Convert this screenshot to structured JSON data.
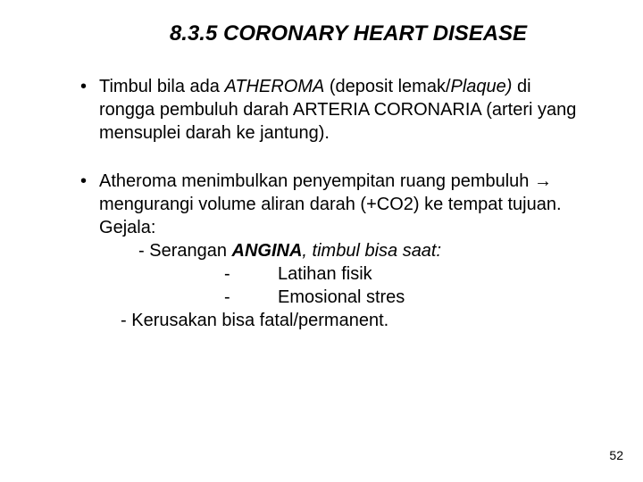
{
  "title": "8.3.5   CORONARY HEART DISEASE",
  "bullet1": {
    "pre": "Timbul bila ada ",
    "atheroma": "ATHEROMA",
    "mid1": " (deposit lemak/",
    "plaque": "Plaque)",
    "rest": " di rongga pembuluh darah ARTERIA CORONARIA (arteri yang mensuplei darah ke jantung)."
  },
  "bullet2": {
    "line1": "Atheroma menimbulkan penyempitan ruang pembuluh → mengurangi volume aliran darah (+CO2) ke tempat tujuan.",
    "gejala": "Gejala:",
    "angina_pre": "- Serangan ",
    "angina_word": "ANGINA",
    "angina_post": ", timbul bisa saat:",
    "sub1_dash": "-",
    "sub1": "Latihan fisik",
    "sub2_dash": "-",
    "sub2": "Emosional stres",
    "kerusakan": "- Kerusakan bisa fatal/permanent."
  },
  "pageNumber": "52",
  "style": {
    "background": "#ffffff",
    "text_color": "#000000",
    "title_fontsize": 24,
    "body_fontsize": 20,
    "pagenum_fontsize": 14
  }
}
